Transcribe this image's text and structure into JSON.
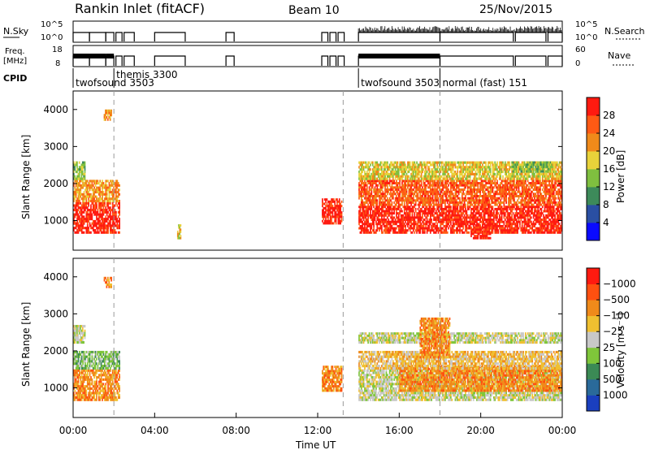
{
  "header": {
    "station": "Rankin Inlet (fitACF)",
    "beam": "Beam 10",
    "date": "25/Nov/2015"
  },
  "strips": {
    "nsky_label": "N.Sky",
    "nsearch_label": "N.Search",
    "nsky_top": "10^5",
    "nsky_bot": "10^0",
    "freq_label_1": "Freq.",
    "freq_label_2": "[MHz]",
    "freq_top": "18",
    "freq_bot": "8",
    "nave_top": "60",
    "nave_bot": "0",
    "nave_label": "Nave",
    "cpid_label": "CPID",
    "cpid_modes": [
      {
        "name": "twofsound 3503",
        "start": 0.0,
        "end": 2.0
      },
      {
        "name": "themis 3300",
        "start": 2.0,
        "end": 3.0
      },
      {
        "name": "twofsound 3503",
        "start": 14.0,
        "end": 18.0
      },
      {
        "name": "normal (fast) 151",
        "start": 18.0,
        "end": 24.0
      }
    ]
  },
  "power_colorbar": {
    "label": "Power [dB]",
    "ticks": [
      "4",
      "8",
      "12",
      "16",
      "20",
      "24",
      "28"
    ],
    "colors": [
      "#0a0aff",
      "#2a4fa3",
      "#3d8a5a",
      "#7fbf3f",
      "#e8d23a",
      "#f08a1a",
      "#ff5a14",
      "#ff1a10"
    ]
  },
  "velocity_colorbar": {
    "label": "Velocity [m s⁻¹]",
    "ticks": [
      "1000",
      "500",
      "100",
      "25",
      "−25",
      "−100",
      "−500",
      "−1000"
    ],
    "colors": [
      "#1a3fbf",
      "#2a6a9a",
      "#3b8a55",
      "#7fc63a",
      "#c8c8c8",
      "#f0c030",
      "#f08a1a",
      "#ff5010",
      "#ff1a10"
    ]
  },
  "chart_data": [
    {
      "type": "heatmap",
      "panel": "power",
      "ylabel": "Slant Range [km]",
      "yticks": [
        "1000",
        "2000",
        "3000",
        "4000"
      ],
      "ylim": [
        200,
        4500
      ],
      "xlim": [
        0,
        24
      ],
      "bands": [
        {
          "t0": 0.0,
          "t1": 2.3,
          "r0": 650,
          "r1": 1500,
          "level": 7
        },
        {
          "t0": 0.0,
          "t1": 2.3,
          "r0": 1500,
          "r1": 2100,
          "level": 5
        },
        {
          "t0": 0.0,
          "t1": 0.6,
          "r0": 2100,
          "r1": 2600,
          "level": 3
        },
        {
          "t0": 1.5,
          "t1": 1.9,
          "r0": 3700,
          "r1": 4000,
          "level": 5
        },
        {
          "t0": 12.2,
          "t1": 13.2,
          "r0": 900,
          "r1": 1600,
          "level": 7
        },
        {
          "t0": 14.0,
          "t1": 24.0,
          "r0": 650,
          "r1": 1400,
          "level": 7
        },
        {
          "t0": 14.0,
          "t1": 24.0,
          "r0": 1400,
          "r1": 2100,
          "level": 6
        },
        {
          "t0": 14.0,
          "t1": 24.0,
          "r0": 2100,
          "r1": 2600,
          "level": 4
        },
        {
          "t0": 19.5,
          "t1": 20.5,
          "r0": 500,
          "r1": 900,
          "level": 7
        },
        {
          "t0": 21.5,
          "t1": 23.5,
          "r0": 2300,
          "r1": 2600,
          "level": 3
        },
        {
          "t0": 5.1,
          "t1": 5.3,
          "r0": 500,
          "r1": 900,
          "level": 4
        }
      ]
    },
    {
      "type": "heatmap",
      "panel": "velocity",
      "ylabel": "Slant Range [km]",
      "yticks": [
        "1000",
        "2000",
        "3000",
        "4000"
      ],
      "ylim": [
        200,
        4500
      ],
      "xlim": [
        0,
        24
      ],
      "xticks": [
        "00:00",
        "04:00",
        "08:00",
        "12:00",
        "16:00",
        "20:00",
        "00:00"
      ],
      "xlabel": "Time UT",
      "bands": [
        {
          "t0": 0.0,
          "t1": 2.3,
          "r0": 650,
          "r1": 1500,
          "level": 6
        },
        {
          "t0": 0.0,
          "t1": 2.3,
          "r0": 1500,
          "r1": 2000,
          "level": 3
        },
        {
          "t0": 0.0,
          "t1": 0.6,
          "r0": 2200,
          "r1": 2700,
          "level": 4
        },
        {
          "t0": 1.5,
          "t1": 1.9,
          "r0": 3700,
          "r1": 4000,
          "level": 6
        },
        {
          "t0": 12.2,
          "t1": 13.2,
          "r0": 900,
          "r1": 1600,
          "level": 6
        },
        {
          "t0": 14.0,
          "t1": 24.0,
          "r0": 650,
          "r1": 1500,
          "level": 4
        },
        {
          "t0": 16.0,
          "t1": 24.0,
          "r0": 900,
          "r1": 1600,
          "level": 6
        },
        {
          "t0": 14.0,
          "t1": 24.0,
          "r0": 1500,
          "r1": 2000,
          "level": 5
        },
        {
          "t0": 14.0,
          "t1": 24.0,
          "r0": 2200,
          "r1": 2500,
          "level": 4
        },
        {
          "t0": 17.0,
          "t1": 18.5,
          "r0": 1800,
          "r1": 2900,
          "level": 6
        }
      ]
    }
  ],
  "dashed_times": [
    2.0,
    13.25,
    18.0
  ]
}
